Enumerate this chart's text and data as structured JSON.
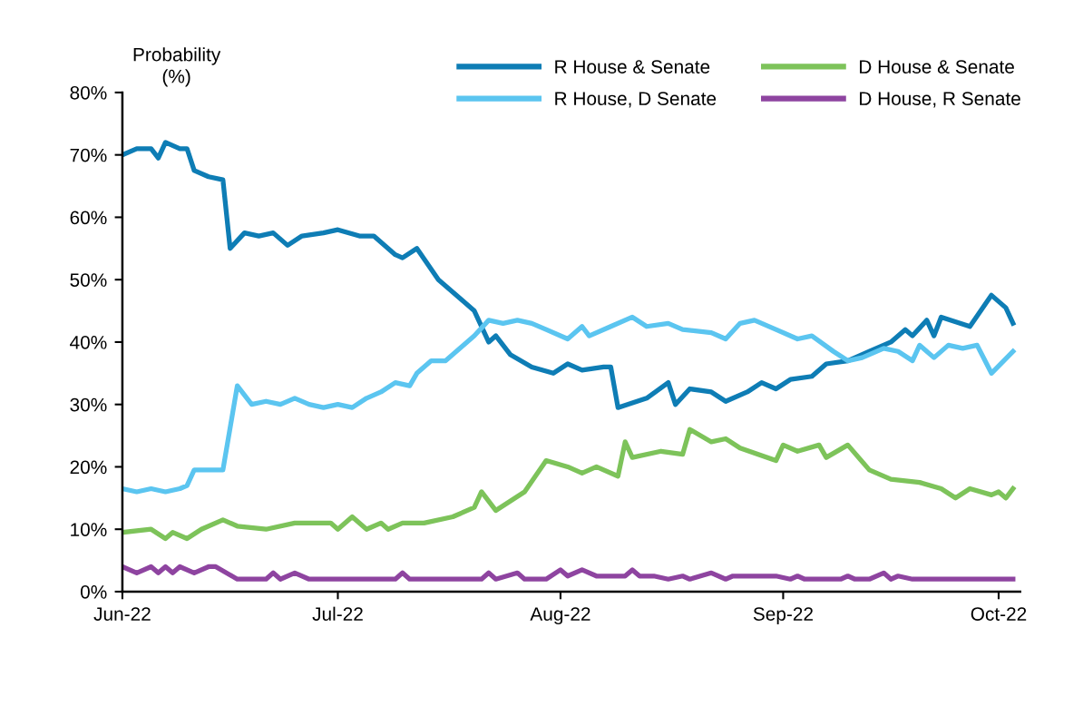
{
  "chart_data": {
    "type": "line",
    "ylabel": "Probability\n(%)",
    "xlim": [
      "2022-06-01",
      "2022-10-04"
    ],
    "ylim": [
      0,
      80
    ],
    "xticks": [
      {
        "value": "2022-06-01",
        "label": "Jun-22"
      },
      {
        "value": "2022-07-01",
        "label": "Jul-22"
      },
      {
        "value": "2022-08-01",
        "label": "Aug-22"
      },
      {
        "value": "2022-09-01",
        "label": "Sep-22"
      },
      {
        "value": "2022-10-01",
        "label": "Oct-22"
      }
    ],
    "yticks": [
      {
        "value": 0,
        "label": "0%"
      },
      {
        "value": 10,
        "label": "10%"
      },
      {
        "value": 20,
        "label": "20%"
      },
      {
        "value": 30,
        "label": "30%"
      },
      {
        "value": 40,
        "label": "40%"
      },
      {
        "value": 50,
        "label": "50%"
      },
      {
        "value": 60,
        "label": "60%"
      },
      {
        "value": 70,
        "label": "70%"
      },
      {
        "value": 80,
        "label": "80%"
      }
    ],
    "grid": false,
    "legend": "top right",
    "marker": "none",
    "line_style": "solid",
    "series": [
      {
        "name": "R House & Senate",
        "color": "#0e7db5",
        "x": [
          "2022-06-01",
          "2022-06-03",
          "2022-06-05",
          "2022-06-06",
          "2022-06-07",
          "2022-06-09",
          "2022-06-10",
          "2022-06-11",
          "2022-06-13",
          "2022-06-15",
          "2022-06-16",
          "2022-06-18",
          "2022-06-20",
          "2022-06-22",
          "2022-06-24",
          "2022-06-26",
          "2022-06-29",
          "2022-07-01",
          "2022-07-04",
          "2022-07-06",
          "2022-07-09",
          "2022-07-10",
          "2022-07-12",
          "2022-07-15",
          "2022-07-18",
          "2022-07-20",
          "2022-07-22",
          "2022-07-23",
          "2022-07-25",
          "2022-07-28",
          "2022-07-31",
          "2022-08-02",
          "2022-08-04",
          "2022-08-07",
          "2022-08-08",
          "2022-08-09",
          "2022-08-13",
          "2022-08-16",
          "2022-08-17",
          "2022-08-19",
          "2022-08-22",
          "2022-08-24",
          "2022-08-27",
          "2022-08-29",
          "2022-08-31",
          "2022-09-02",
          "2022-09-05",
          "2022-09-07",
          "2022-09-10",
          "2022-09-13",
          "2022-09-16",
          "2022-09-18",
          "2022-09-19",
          "2022-09-21",
          "2022-09-22",
          "2022-09-23",
          "2022-09-27",
          "2022-09-30",
          "2022-10-02",
          "2022-10-03"
        ],
        "values": [
          70,
          71,
          71,
          69.5,
          72,
          71,
          71,
          67.5,
          66.5,
          66,
          55,
          57.5,
          57,
          57.5,
          55.5,
          57,
          57.5,
          58,
          57,
          57,
          54,
          53.5,
          55,
          50,
          47,
          45,
          40,
          41,
          38,
          36,
          35,
          36.5,
          35.5,
          36,
          36,
          29.5,
          31,
          33.5,
          30,
          32.5,
          32,
          30.5,
          32,
          33.5,
          32.5,
          34,
          34.5,
          36.5,
          37,
          38.5,
          40,
          42,
          41,
          43.5,
          41,
          44,
          42.5,
          47.5,
          45.5,
          43
        ]
      },
      {
        "name": "R House, D Senate",
        "color": "#5bc5f0",
        "x": [
          "2022-06-01",
          "2022-06-03",
          "2022-06-05",
          "2022-06-07",
          "2022-06-09",
          "2022-06-10",
          "2022-06-11",
          "2022-06-15",
          "2022-06-17",
          "2022-06-19",
          "2022-06-21",
          "2022-06-23",
          "2022-06-25",
          "2022-06-27",
          "2022-06-29",
          "2022-07-01",
          "2022-07-03",
          "2022-07-05",
          "2022-07-07",
          "2022-07-09",
          "2022-07-11",
          "2022-07-12",
          "2022-07-14",
          "2022-07-16",
          "2022-07-18",
          "2022-07-20",
          "2022-07-22",
          "2022-07-24",
          "2022-07-26",
          "2022-07-28",
          "2022-07-30",
          "2022-08-02",
          "2022-08-04",
          "2022-08-05",
          "2022-08-08",
          "2022-08-11",
          "2022-08-13",
          "2022-08-16",
          "2022-08-18",
          "2022-08-22",
          "2022-08-24",
          "2022-08-26",
          "2022-08-28",
          "2022-08-31",
          "2022-09-03",
          "2022-09-05",
          "2022-09-08",
          "2022-09-10",
          "2022-09-12",
          "2022-09-15",
          "2022-09-17",
          "2022-09-19",
          "2022-09-20",
          "2022-09-22",
          "2022-09-24",
          "2022-09-26",
          "2022-09-28",
          "2022-09-30",
          "2022-10-03"
        ],
        "values": [
          16.5,
          16,
          16.5,
          16,
          16.5,
          17,
          19.5,
          19.5,
          33,
          30,
          30.5,
          30,
          31,
          30,
          29.5,
          30,
          29.5,
          31,
          32,
          33.5,
          33,
          35,
          37,
          37,
          39,
          41,
          43.5,
          43,
          43.5,
          43,
          42,
          40.5,
          42.5,
          41,
          42.5,
          44,
          42.5,
          43,
          42,
          41.5,
          40.5,
          43,
          43.5,
          42,
          40.5,
          41,
          38.5,
          37,
          37.5,
          39,
          38.5,
          37,
          39.5,
          37.5,
          39.5,
          39,
          39.5,
          35,
          38.5
        ]
      },
      {
        "name": "D House & Senate",
        "color": "#7dc35a",
        "x": [
          "2022-06-01",
          "2022-06-05",
          "2022-06-07",
          "2022-06-08",
          "2022-06-10",
          "2022-06-12",
          "2022-06-15",
          "2022-06-17",
          "2022-06-21",
          "2022-06-25",
          "2022-06-30",
          "2022-07-01",
          "2022-07-03",
          "2022-07-05",
          "2022-07-07",
          "2022-07-08",
          "2022-07-10",
          "2022-07-13",
          "2022-07-17",
          "2022-07-20",
          "2022-07-21",
          "2022-07-23",
          "2022-07-27",
          "2022-07-30",
          "2022-08-02",
          "2022-08-04",
          "2022-08-06",
          "2022-08-09",
          "2022-08-10",
          "2022-08-11",
          "2022-08-15",
          "2022-08-18",
          "2022-08-19",
          "2022-08-22",
          "2022-08-24",
          "2022-08-26",
          "2022-08-31",
          "2022-09-01",
          "2022-09-03",
          "2022-09-06",
          "2022-09-07",
          "2022-09-10",
          "2022-09-13",
          "2022-09-16",
          "2022-09-20",
          "2022-09-23",
          "2022-09-25",
          "2022-09-27",
          "2022-09-30",
          "2022-10-01",
          "2022-10-02",
          "2022-10-03"
        ],
        "values": [
          9.5,
          10,
          8.5,
          9.5,
          8.5,
          10,
          11.5,
          10.5,
          10,
          11,
          11,
          10,
          12,
          10,
          11,
          10,
          11,
          11,
          12,
          13.5,
          16,
          13,
          16,
          21,
          20,
          19,
          20,
          18.5,
          24,
          21.5,
          22.5,
          22,
          26,
          24,
          24.5,
          23,
          21,
          23.5,
          22.5,
          23.5,
          21.5,
          23.5,
          19.5,
          18,
          17.5,
          16.5,
          15,
          16.5,
          15.5,
          16,
          15,
          16.5
        ]
      },
      {
        "name": "D House, R Senate",
        "color": "#8e44a0",
        "x": [
          "2022-06-01",
          "2022-06-03",
          "2022-06-05",
          "2022-06-06",
          "2022-06-07",
          "2022-06-08",
          "2022-06-09",
          "2022-06-11",
          "2022-06-13",
          "2022-06-14",
          "2022-06-17",
          "2022-06-21",
          "2022-06-22",
          "2022-06-23",
          "2022-06-25",
          "2022-06-27",
          "2022-07-09",
          "2022-07-10",
          "2022-07-11",
          "2022-07-21",
          "2022-07-22",
          "2022-07-23",
          "2022-07-26",
          "2022-07-27",
          "2022-07-30",
          "2022-08-01",
          "2022-08-02",
          "2022-08-04",
          "2022-08-06",
          "2022-08-10",
          "2022-08-11",
          "2022-08-12",
          "2022-08-14",
          "2022-08-16",
          "2022-08-18",
          "2022-08-19",
          "2022-08-22",
          "2022-08-24",
          "2022-08-25",
          "2022-08-31",
          "2022-09-02",
          "2022-09-03",
          "2022-09-04",
          "2022-09-09",
          "2022-09-10",
          "2022-09-11",
          "2022-09-13",
          "2022-09-15",
          "2022-09-16",
          "2022-09-17",
          "2022-09-19",
          "2022-10-03"
        ],
        "values": [
          4,
          3,
          4,
          3,
          4,
          3,
          4,
          3,
          4,
          4,
          2,
          2,
          3,
          2,
          3,
          2,
          2,
          3,
          2,
          2,
          3,
          2,
          3,
          2,
          2,
          3.5,
          2.5,
          3.5,
          2.5,
          2.5,
          3.5,
          2.5,
          2.5,
          2,
          2.5,
          2,
          3,
          2,
          2.5,
          2.5,
          2,
          2.5,
          2,
          2,
          2.5,
          2,
          2,
          3,
          2,
          2.5,
          2,
          2
        ]
      }
    ]
  }
}
